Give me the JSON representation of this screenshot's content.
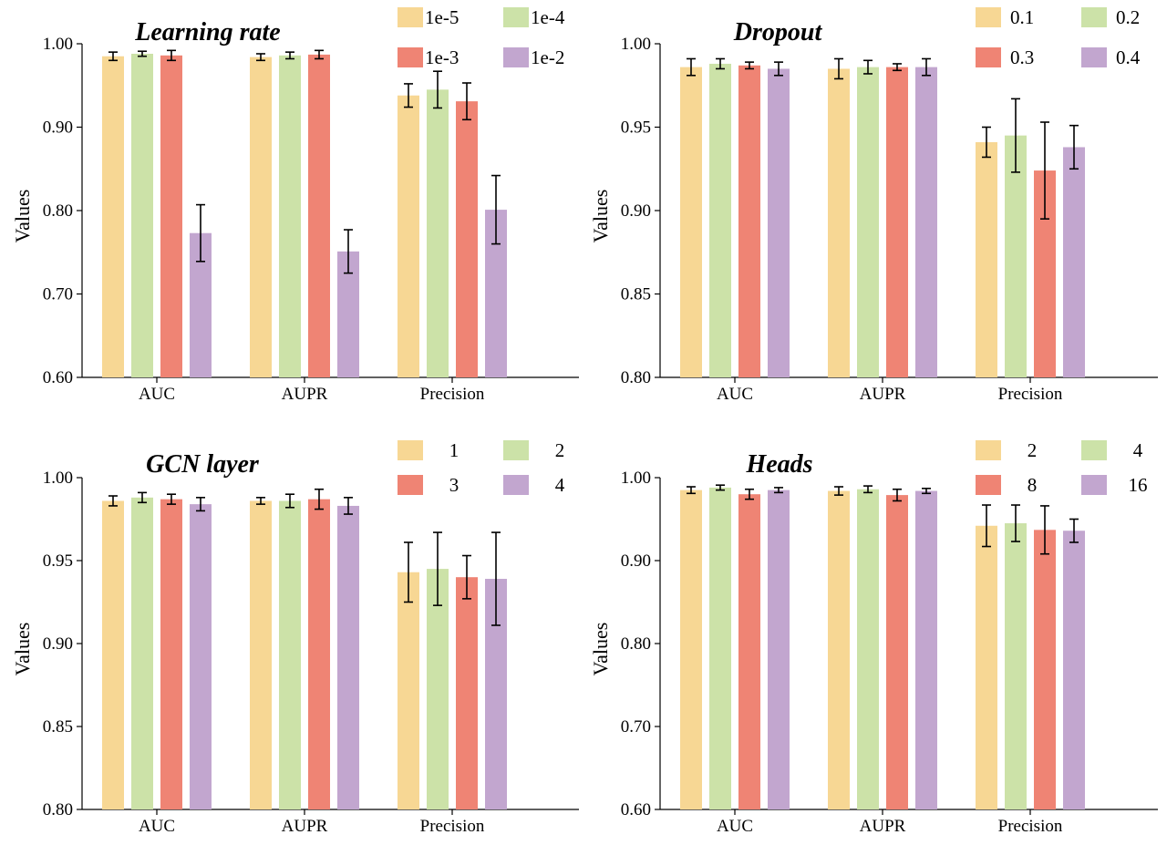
{
  "colors": {
    "series": [
      "#f7d794",
      "#cce2a8",
      "#ef8474",
      "#c2a6cf"
    ],
    "error_bar": "#000000"
  },
  "chart_data": [
    {
      "type": "bar",
      "title": "Learning rate",
      "ylabel": "Values",
      "ylim": [
        0.6,
        1.0
      ],
      "yticks": [
        "0.60",
        "0.70",
        "0.80",
        "0.90",
        "1.00"
      ],
      "categories": [
        "AUC",
        "AUPR",
        "Precision"
      ],
      "legend_position": "top-right",
      "series": [
        {
          "name": "1e-5",
          "values": [
            0.985,
            0.984,
            0.938
          ],
          "errors": [
            0.005,
            0.004,
            0.014
          ]
        },
        {
          "name": "1e-4",
          "values": [
            0.988,
            0.986,
            0.945
          ],
          "errors": [
            0.003,
            0.004,
            0.022
          ]
        },
        {
          "name": "1e-3",
          "values": [
            0.986,
            0.987,
            0.931
          ],
          "errors": [
            0.006,
            0.005,
            0.022
          ]
        },
        {
          "name": "1e-2",
          "values": [
            0.773,
            0.751,
            0.801
          ],
          "errors": [
            0.034,
            0.026,
            0.041
          ]
        }
      ]
    },
    {
      "type": "bar",
      "title": "Dropout",
      "ylabel": "Values",
      "ylim": [
        0.8,
        1.0
      ],
      "yticks": [
        "0.80",
        "0.85",
        "0.90",
        "0.95",
        "1.00"
      ],
      "categories": [
        "AUC",
        "AUPR",
        "Precision"
      ],
      "legend_position": "top-right",
      "series": [
        {
          "name": "0.1",
          "values": [
            0.986,
            0.985,
            0.941
          ],
          "errors": [
            0.005,
            0.006,
            0.009
          ]
        },
        {
          "name": "0.2",
          "values": [
            0.988,
            0.986,
            0.945
          ],
          "errors": [
            0.003,
            0.004,
            0.022
          ]
        },
        {
          "name": "0.3",
          "values": [
            0.987,
            0.986,
            0.924
          ],
          "errors": [
            0.002,
            0.002,
            0.029
          ]
        },
        {
          "name": "0.4",
          "values": [
            0.985,
            0.986,
            0.938
          ],
          "errors": [
            0.004,
            0.005,
            0.013
          ]
        }
      ]
    },
    {
      "type": "bar",
      "title": "GCN layer",
      "ylabel": "Values",
      "ylim": [
        0.8,
        1.0
      ],
      "yticks": [
        "0.80",
        "0.85",
        "0.90",
        "0.95",
        "1.00"
      ],
      "categories": [
        "AUC",
        "AUPR",
        "Precision"
      ],
      "legend_position": "top-right",
      "series": [
        {
          "name": "1",
          "values": [
            0.986,
            0.986,
            0.943
          ],
          "errors": [
            0.003,
            0.002,
            0.018
          ]
        },
        {
          "name": "2",
          "values": [
            0.988,
            0.986,
            0.945
          ],
          "errors": [
            0.003,
            0.004,
            0.022
          ]
        },
        {
          "name": "3",
          "values": [
            0.987,
            0.987,
            0.94
          ],
          "errors": [
            0.003,
            0.006,
            0.013
          ]
        },
        {
          "name": "4",
          "values": [
            0.984,
            0.983,
            0.939
          ],
          "errors": [
            0.004,
            0.005,
            0.028
          ]
        }
      ]
    },
    {
      "type": "bar",
      "title": "Heads",
      "ylabel": "Values",
      "ylim": [
        0.6,
        1.0
      ],
      "yticks": [
        "0.60",
        "0.70",
        "0.80",
        "0.90",
        "1.00"
      ],
      "categories": [
        "AUC",
        "AUPR",
        "Precision"
      ],
      "legend_position": "top-right",
      "series": [
        {
          "name": "2",
          "values": [
            0.985,
            0.984,
            0.942
          ],
          "errors": [
            0.004,
            0.005,
            0.025
          ]
        },
        {
          "name": "4",
          "values": [
            0.988,
            0.986,
            0.945
          ],
          "errors": [
            0.003,
            0.004,
            0.022
          ]
        },
        {
          "name": "8",
          "values": [
            0.98,
            0.979,
            0.937
          ],
          "errors": [
            0.006,
            0.007,
            0.029
          ]
        },
        {
          "name": "16",
          "values": [
            0.985,
            0.984,
            0.936
          ],
          "errors": [
            0.003,
            0.003,
            0.014
          ]
        }
      ]
    }
  ]
}
